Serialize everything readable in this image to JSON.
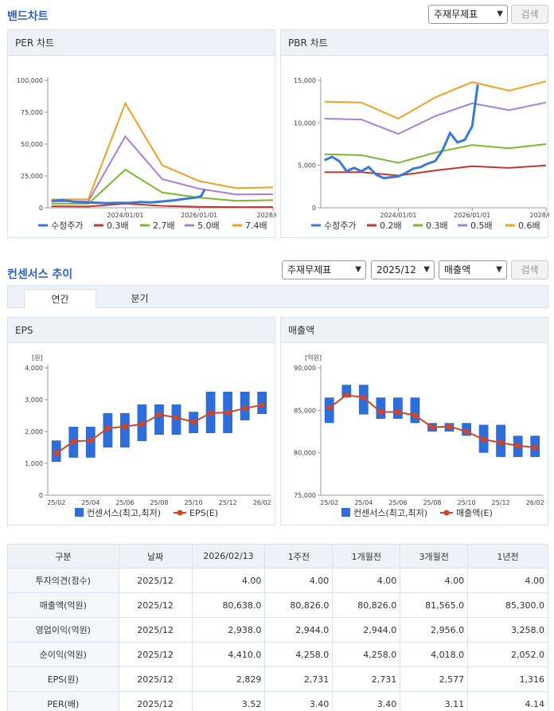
{
  "band": {
    "title": "밴드차트",
    "select_value": "주재무제표",
    "search_label": "검색"
  },
  "consensus": {
    "title": "컨센서스 추이",
    "select1": "주재무제표",
    "select2": "2025/12",
    "select3": "매출액",
    "search_label": "검색",
    "tabs": [
      "연간",
      "분기"
    ]
  },
  "colors": {
    "price": "#3a78d8",
    "band1": "#c0392b",
    "band2": "#7ab830",
    "band3": "#a77fd6",
    "band4": "#f2a023",
    "bar": "#2f6ddb",
    "estimate": "#d64420"
  },
  "chart_data": [
    {
      "type": "line",
      "title": "PER 차트",
      "x_ticks": [
        "2024/01/01",
        "2026/01/01",
        "2028/01/0"
      ],
      "xlim": [
        2021.9,
        2028.0
      ],
      "ylim": [
        0,
        100000
      ],
      "y_ticks": [
        "0",
        "25,000",
        "50,000",
        "75,000",
        "100,000"
      ],
      "legend": [
        "수정주가",
        "0.3배",
        "2.7배",
        "5.0배",
        "7.4배"
      ],
      "series": [
        {
          "name": "0.3배",
          "x": [
            2022.0,
            2023.0,
            2024.0,
            2025.0,
            2026.0,
            2027.0,
            2028.0
          ],
          "y": [
            1200,
            1000,
            3300,
            1500,
            800,
            550,
            650
          ]
        },
        {
          "name": "2.7배",
          "x": [
            2022.0,
            2023.0,
            2024.0,
            2025.0,
            2026.0,
            2027.0,
            2028.0
          ],
          "y": [
            3300,
            3200,
            30000,
            12000,
            8000,
            5500,
            6000
          ]
        },
        {
          "name": "5.0배",
          "x": [
            2022.0,
            2023.0,
            2024.0,
            2025.0,
            2026.0,
            2027.0,
            2028.0
          ],
          "y": [
            5000,
            5200,
            56000,
            22500,
            15000,
            10500,
            10700
          ]
        },
        {
          "name": "7.4배",
          "x": [
            2022.0,
            2023.0,
            2024.0,
            2025.0,
            2026.0,
            2027.0,
            2028.0
          ],
          "y": [
            6500,
            6800,
            82000,
            33500,
            21000,
            15500,
            16000
          ]
        },
        {
          "name": "수정주가",
          "x": [
            2022.0,
            2022.3,
            2022.6,
            2022.9,
            2023.2,
            2023.5,
            2023.8,
            2024.1,
            2024.4,
            2024.7,
            2025.0,
            2025.3,
            2025.6,
            2025.9,
            2026.05,
            2026.15
          ],
          "y": [
            5500,
            6000,
            4800,
            4300,
            4000,
            3700,
            3900,
            3800,
            4500,
            4200,
            5000,
            5800,
            7000,
            8000,
            9000,
            14500
          ]
        }
      ]
    },
    {
      "type": "line",
      "title": "PBR 차트",
      "x_ticks": [
        "2024/01/01",
        "2026/01/01",
        "2028/01/0"
      ],
      "xlim": [
        2021.9,
        2028.0
      ],
      "ylim": [
        0,
        15000
      ],
      "y_ticks": [
        "0",
        "5,000",
        "10,000",
        "15,000"
      ],
      "legend": [
        "수정주가",
        "0.2배",
        "0.3배",
        "0.5배",
        "0.6배"
      ],
      "series": [
        {
          "name": "0.2배",
          "x": [
            2022.0,
            2023.0,
            2024.0,
            2025.0,
            2026.0,
            2027.0,
            2028.0
          ],
          "y": [
            4200,
            4200,
            3800,
            4400,
            4900,
            4700,
            5000
          ]
        },
        {
          "name": "0.3배",
          "x": [
            2022.0,
            2023.0,
            2024.0,
            2025.0,
            2026.0,
            2027.0,
            2028.0
          ],
          "y": [
            6300,
            6200,
            5300,
            6500,
            7400,
            7000,
            7500
          ]
        },
        {
          "name": "0.5배",
          "x": [
            2022.0,
            2023.0,
            2024.0,
            2025.0,
            2026.0,
            2027.0,
            2028.0
          ],
          "y": [
            10500,
            10400,
            8700,
            10800,
            12300,
            11500,
            12400
          ]
        },
        {
          "name": "0.6배",
          "x": [
            2022.0,
            2023.0,
            2024.0,
            2025.0,
            2026.0,
            2027.0,
            2028.0
          ],
          "y": [
            12500,
            12400,
            10500,
            13000,
            14800,
            13800,
            14900
          ]
        },
        {
          "name": "수정주가",
          "x": [
            2022.0,
            2022.2,
            2022.4,
            2022.6,
            2022.8,
            2023.0,
            2023.2,
            2023.4,
            2023.6,
            2023.8,
            2024.0,
            2024.2,
            2024.4,
            2024.6,
            2024.8,
            2025.0,
            2025.2,
            2025.4,
            2025.6,
            2025.8,
            2026.0,
            2026.15
          ],
          "y": [
            5600,
            6000,
            5500,
            4300,
            4700,
            4300,
            4800,
            3900,
            3500,
            3600,
            3700,
            4100,
            4600,
            4800,
            5200,
            5500,
            6800,
            8800,
            7700,
            8000,
            9600,
            14500
          ]
        }
      ]
    },
    {
      "type": "bar",
      "title": "EPS",
      "unit": "[원]",
      "categories": [
        "25/02",
        "25/03",
        "25/04",
        "25/05",
        "25/06",
        "25/07",
        "25/08",
        "25/09",
        "25/10",
        "25/11",
        "25/12",
        "26/01",
        "26/02"
      ],
      "x_ticks": [
        "25/02",
        "25/04",
        "25/06",
        "25/08",
        "25/10",
        "25/12",
        "26/02"
      ],
      "ylim": [
        0,
        4000
      ],
      "y_ticks": [
        "0",
        "1,000",
        "2,000",
        "3,000",
        "4,000"
      ],
      "legend": [
        "컨센서스(최고,최저)",
        "EPS(E)"
      ],
      "series": [
        {
          "name": "컨센서스 최고",
          "values": [
            1720,
            2150,
            2150,
            2580,
            2580,
            2850,
            2850,
            2850,
            2620,
            3250,
            3250,
            3250,
            3250
          ]
        },
        {
          "name": "컨센서스 최저",
          "values": [
            1050,
            1180,
            1180,
            1500,
            1500,
            1700,
            1900,
            1900,
            1950,
            1950,
            1950,
            2350,
            2550
          ]
        },
        {
          "name": "EPS(E)",
          "values": [
            1316,
            1690,
            1720,
            2100,
            2160,
            2230,
            2530,
            2440,
            2300,
            2577,
            2600,
            2731,
            2829
          ]
        }
      ]
    },
    {
      "type": "bar",
      "title": "매출액",
      "unit": "[억원]",
      "categories": [
        "25/02",
        "25/03",
        "25/04",
        "25/05",
        "25/06",
        "25/07",
        "25/08",
        "25/09",
        "25/10",
        "25/11",
        "25/12",
        "26/01",
        "26/02"
      ],
      "x_ticks": [
        "25/02",
        "25/04",
        "25/06",
        "25/08",
        "25/10",
        "25/12",
        "26/02"
      ],
      "ylim": [
        75000,
        90000
      ],
      "y_ticks": [
        "75,000",
        "80,000",
        "85,000",
        "90,000"
      ],
      "legend": [
        "컨센서스(최고,최저)",
        "매출액(E)"
      ],
      "series": [
        {
          "name": "컨센서스 최고",
          "values": [
            86500,
            88000,
            88000,
            86500,
            86500,
            86500,
            83500,
            83500,
            83500,
            83300,
            83300,
            82000,
            82000
          ]
        },
        {
          "name": "컨센서스 최저",
          "values": [
            83500,
            86500,
            84500,
            84000,
            84000,
            83500,
            82500,
            82500,
            82000,
            80000,
            79500,
            79500,
            79500
          ]
        },
        {
          "name": "매출액(E)",
          "values": [
            85300,
            86800,
            86500,
            84800,
            84800,
            84400,
            83000,
            83100,
            82500,
            81565,
            81200,
            80826,
            80638
          ]
        }
      ]
    }
  ],
  "table": {
    "headers": [
      "구분",
      "날짜",
      "2026/02/13",
      "1주전",
      "1개월전",
      "3개월전",
      "1년전"
    ],
    "rows": [
      [
        "투자의견(점수)",
        "2025/12",
        "4.00",
        "4.00",
        "4.00",
        "4.00",
        "4.00"
      ],
      [
        "매출액(억원)",
        "2025/12",
        "80,638.0",
        "80,826.0",
        "80,826.0",
        "81,565.0",
        "85,300.0"
      ],
      [
        "영업이익(억원)",
        "2025/12",
        "2,938.0",
        "2,944.0",
        "2,944.0",
        "2,956.0",
        "3,258.0"
      ],
      [
        "순이익(억원)",
        "2025/12",
        "4,410.0",
        "4,258.0",
        "4,258.0",
        "4,018.0",
        "2,052.0"
      ],
      [
        "EPS(원)",
        "2025/12",
        "2,829",
        "2,731",
        "2,731",
        "2,577",
        "1,316"
      ],
      [
        "PER(배)",
        "2025/12",
        "3.52",
        "3.40",
        "3.40",
        "3.11",
        "4.14"
      ]
    ]
  }
}
